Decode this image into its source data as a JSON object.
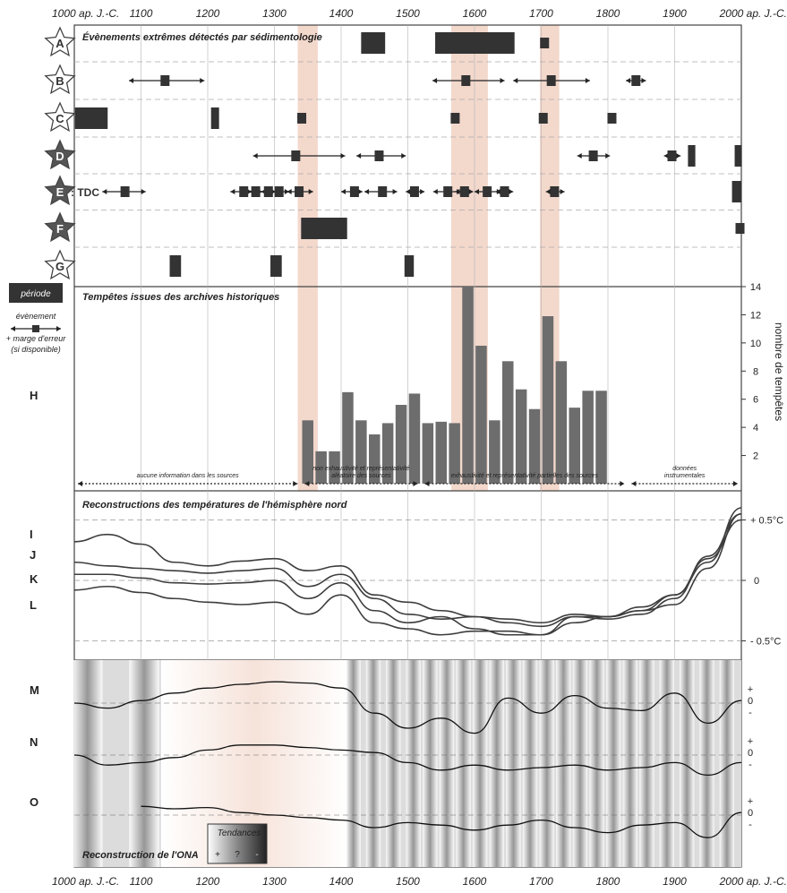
{
  "colors": {
    "bar": "#6d6d6d",
    "event": "#333333",
    "highlight": "#f3d8cc",
    "line": "#3d3d3d",
    "frame": "#444444"
  },
  "axis": {
    "year_min": 1000,
    "year_max": 2000,
    "top_ticks": [
      "1000 ap. J.-C.",
      "1100",
      "1200",
      "1300",
      "1400",
      "1500",
      "1600",
      "1700",
      "1800",
      "1900",
      "2000 ap. J.-C."
    ],
    "bottom_ticks": [
      "1000 ap. J.-C.",
      "1100",
      "1200",
      "1300",
      "1400",
      "1500",
      "1600",
      "1700",
      "1800",
      "1900",
      "2000 ap. J.-C."
    ]
  },
  "legend": {
    "period": "période",
    "event_line1": "évènement",
    "event_line2": "+ marge d'erreur",
    "event_line3": "(si disponible)"
  },
  "chart_data": [
    {
      "type": "timeline",
      "title": "Évènements extrêmes détectés par sédimentologie",
      "highlight_periods": [
        [
          1335,
          1365
        ],
        [
          1565,
          1620
        ],
        [
          1698,
          1727
        ]
      ],
      "rows": [
        {
          "label": "A",
          "periods": [
            [
              1430,
              1466
            ],
            [
              1541,
              1660
            ]
          ],
          "events": [
            {
              "year": 1705,
              "low": null,
              "high": null
            }
          ]
        },
        {
          "label": "B",
          "periods": [],
          "events": [
            {
              "year": 1136,
              "low": 1082,
              "high": 1195
            },
            {
              "year": 1587,
              "low": 1537,
              "high": 1645
            },
            {
              "year": 1715,
              "low": 1658,
              "high": 1773
            },
            {
              "year": 1842,
              "low": 1827,
              "high": 1857
            }
          ]
        },
        {
          "label": "C",
          "periods": [
            [
              1001,
              1050
            ],
            [
              1205,
              1217
            ]
          ],
          "events": [
            {
              "year": 1341,
              "low": null,
              "high": null
            },
            {
              "year": 1571,
              "low": null,
              "high": null
            },
            {
              "year": 1703,
              "low": null,
              "high": null
            },
            {
              "year": 1806,
              "low": null,
              "high": null
            }
          ]
        },
        {
          "label": "D",
          "periods": [
            [
              1920,
              1931
            ],
            [
              1990,
              2000
            ]
          ],
          "events": [
            {
              "year": 1332,
              "low": 1268,
              "high": 1406
            },
            {
              "year": 1457,
              "low": 1423,
              "high": 1497
            },
            {
              "year": 1778,
              "low": 1754,
              "high": 1803
            },
            {
              "year": 1896,
              "low": 1884,
              "high": 1909
            }
          ]
        },
        {
          "label": "E",
          "label_suffix": ": TDC",
          "periods": [
            [
              1986,
              2000
            ]
          ],
          "events": [
            {
              "year": 1076,
              "low": 1042,
              "high": 1107
            },
            {
              "year": 1254,
              "low": 1234,
              "high": 1266
            },
            {
              "year": 1272,
              "low": 1262,
              "high": 1282
            },
            {
              "year": 1291,
              "low": 1280,
              "high": 1302
            },
            {
              "year": 1307,
              "low": 1300,
              "high": 1322
            },
            {
              "year": 1337,
              "low": 1319,
              "high": 1358
            },
            {
              "year": 1420,
              "low": 1400,
              "high": 1432
            },
            {
              "year": 1462,
              "low": 1435,
              "high": 1484
            },
            {
              "year": 1510,
              "low": 1497,
              "high": 1525
            },
            {
              "year": 1560,
              "low": 1538,
              "high": 1580
            },
            {
              "year": 1585,
              "low": 1571,
              "high": 1598
            },
            {
              "year": 1619,
              "low": 1600,
              "high": 1640
            },
            {
              "year": 1645,
              "low": 1632,
              "high": 1658
            },
            {
              "year": 1720,
              "low": 1707,
              "high": 1735
            }
          ]
        },
        {
          "label": "F",
          "periods": [
            [
              1340,
              1409
            ]
          ],
          "events": [
            {
              "year": 1998,
              "low": 1993,
              "high": 2003
            }
          ]
        },
        {
          "label": "G",
          "periods": [
            [
              1143,
              1160
            ],
            [
              1294,
              1311
            ],
            [
              1495,
              1509
            ]
          ],
          "events": []
        }
      ]
    },
    {
      "type": "bar",
      "title": "Tempêtes issues des archives historiques",
      "row_label": "H",
      "ylabel": "nombre de tempêtes",
      "ylim": [
        0,
        14
      ],
      "yticks": [
        "2",
        "4",
        "6",
        "8",
        "10",
        "12",
        "14"
      ],
      "bins": [
        [
          1340,
          1360
        ],
        [
          1360,
          1380
        ],
        [
          1380,
          1400
        ],
        [
          1400,
          1420
        ],
        [
          1420,
          1440
        ],
        [
          1440,
          1460
        ],
        [
          1460,
          1480
        ],
        [
          1480,
          1500
        ],
        [
          1500,
          1520
        ],
        [
          1520,
          1540
        ],
        [
          1540,
          1560
        ],
        [
          1560,
          1580
        ],
        [
          1580,
          1600
        ],
        [
          1600,
          1620
        ],
        [
          1620,
          1640
        ],
        [
          1640,
          1660
        ],
        [
          1660,
          1680
        ],
        [
          1680,
          1700
        ],
        [
          1700,
          1720
        ],
        [
          1720,
          1740
        ],
        [
          1740,
          1760
        ],
        [
          1760,
          1780
        ],
        [
          1780,
          1800
        ]
      ],
      "values": [
        4.5,
        2.3,
        2.3,
        6.5,
        4.5,
        3.5,
        4.3,
        5.6,
        6.4,
        4.3,
        4.4,
        4.3,
        14,
        9.8,
        4.5,
        8.7,
        6.7,
        5.3,
        11.9,
        8.7,
        5.4,
        6.6,
        6.6
      ],
      "source_periods": [
        {
          "label": "aucune information dans les sources",
          "start": 1000,
          "end": 1340
        },
        {
          "label_line1": "non exhaustivité et représentativité",
          "label_line2": "aléatoire des sources",
          "start": 1340,
          "end": 1520
        },
        {
          "label": "exhaustivité et représentativité partielles des sources",
          "start": 1520,
          "end": 1830
        },
        {
          "label_line1": "données",
          "label_line2": "instrumentales",
          "start": 1830,
          "end": 2000
        }
      ]
    },
    {
      "type": "line",
      "title": "Reconstructions des températures de l'hémisphère nord",
      "ylim": [
        -0.6,
        0.6
      ],
      "yticks": [
        "+ 0.5°C",
        "0",
        "- 0.5°C"
      ],
      "x": [
        1000,
        1050,
        1100,
        1150,
        1200,
        1250,
        1300,
        1350,
        1400,
        1450,
        1500,
        1550,
        1600,
        1650,
        1700,
        1750,
        1800,
        1850,
        1900,
        1950,
        2000
      ],
      "series": [
        {
          "name": "I",
          "values": [
            0.32,
            0.38,
            0.3,
            0.15,
            0.12,
            0.16,
            0.18,
            0.08,
            0.12,
            -0.12,
            -0.18,
            -0.25,
            -0.3,
            -0.32,
            -0.35,
            -0.28,
            -0.3,
            -0.22,
            -0.12,
            0.15,
            0.6
          ]
        },
        {
          "name": "J",
          "values": [
            0.15,
            0.12,
            0.1,
            0.08,
            0.06,
            0.08,
            0.1,
            -0.05,
            0.05,
            -0.15,
            -0.28,
            -0.32,
            -0.3,
            -0.35,
            -0.38,
            -0.3,
            -0.32,
            -0.28,
            -0.15,
            0.2,
            0.55
          ]
        },
        {
          "name": "K",
          "values": [
            0.05,
            0.05,
            0.02,
            -0.02,
            -0.03,
            -0.02,
            0.0,
            -0.15,
            -0.02,
            -0.25,
            -0.35,
            -0.3,
            -0.4,
            -0.45,
            -0.45,
            -0.3,
            -0.3,
            -0.25,
            -0.12,
            0.18,
            0.5
          ]
        },
        {
          "name": "L",
          "values": [
            -0.08,
            -0.05,
            -0.1,
            -0.15,
            -0.18,
            -0.2,
            -0.18,
            -0.28,
            -0.12,
            -0.35,
            -0.4,
            -0.45,
            -0.42,
            -0.42,
            -0.45,
            -0.35,
            -0.3,
            -0.25,
            -0.2,
            0.1,
            0.55
          ]
        }
      ]
    },
    {
      "type": "line",
      "title": "Reconstruction de l'ONA",
      "trend_legend_title": "Tendances",
      "trend_legend_items": [
        "+",
        "?",
        "-"
      ],
      "tick_labels": [
        "+",
        "0",
        "-"
      ],
      "x": [
        1000,
        1050,
        1100,
        1150,
        1200,
        1250,
        1300,
        1350,
        1400,
        1450,
        1500,
        1550,
        1600,
        1650,
        1700,
        1750,
        1800,
        1850,
        1900,
        1950,
        2000
      ],
      "series": [
        {
          "name": "M",
          "values": [
            0.0,
            -0.2,
            0.1,
            0.4,
            0.6,
            0.75,
            0.85,
            0.8,
            0.6,
            -0.4,
            -1.0,
            -0.6,
            -1.2,
            0.2,
            -0.4,
            0.3,
            -0.2,
            -0.3,
            0.4,
            -0.8,
            0.1
          ]
        },
        {
          "name": "N",
          "values": [
            0.0,
            -0.4,
            -0.3,
            -0.1,
            0.2,
            0.4,
            0.4,
            0.3,
            0.2,
            0.1,
            -0.3,
            -0.6,
            -0.4,
            -0.6,
            -0.5,
            -0.4,
            -0.6,
            -0.5,
            -0.3,
            -0.8,
            -0.3
          ]
        },
        {
          "name": "O",
          "values": [
            null,
            null,
            0.35,
            0.25,
            0.3,
            0.1,
            0.0,
            -0.1,
            -0.2,
            -0.5,
            -0.3,
            -0.4,
            -0.6,
            -0.4,
            -0.2,
            -0.5,
            -0.7,
            -0.4,
            -0.3,
            -0.9,
            0.1
          ]
        }
      ]
    }
  ]
}
